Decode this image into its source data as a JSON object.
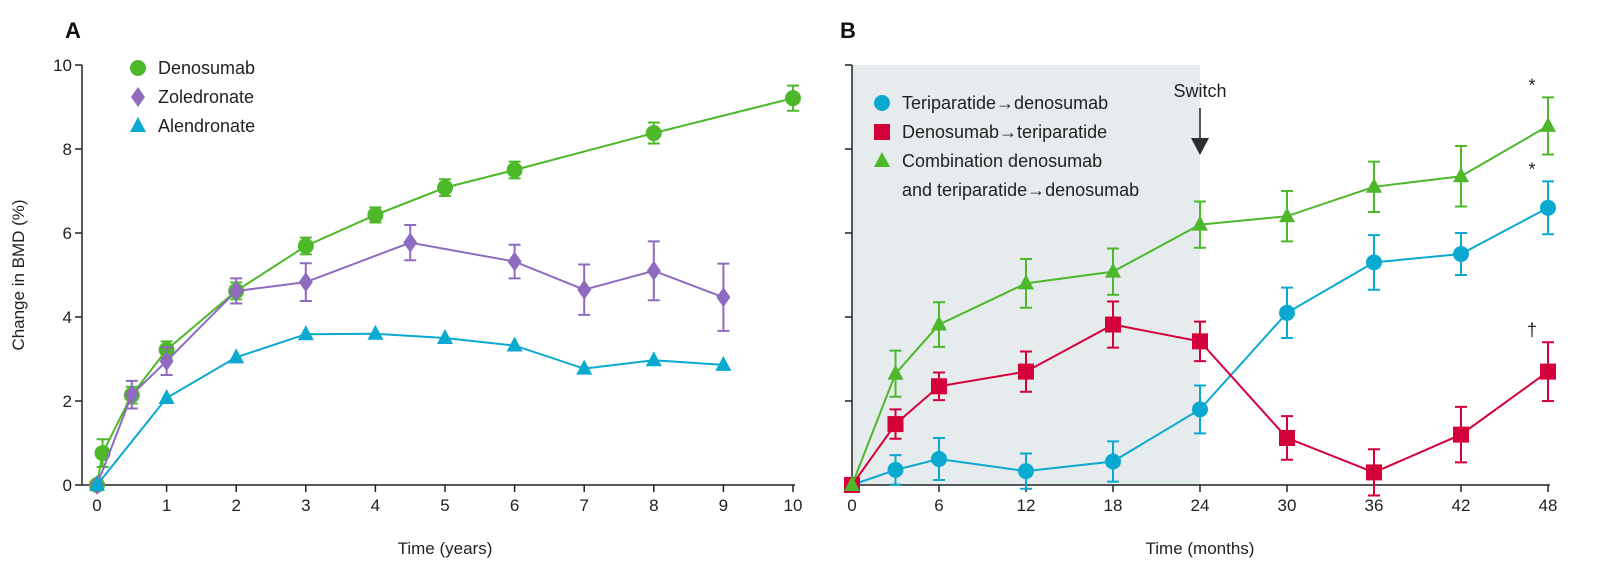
{
  "colors": {
    "denosumab": "#4cb82a",
    "zoledronate": "#8e6bbf",
    "alendronate": "#0aa9cf",
    "deno_teri": "#d4003a",
    "shade": "#e6ebed",
    "axis": "#222222"
  },
  "chart_data": [
    {
      "panel": "A",
      "type": "line",
      "xlabel": "Time (years)",
      "ylabel": "Change in BMD (%)",
      "xlim": [
        0,
        10
      ],
      "ylim": [
        0,
        10
      ],
      "xticks": [
        0,
        1,
        2,
        3,
        4,
        5,
        6,
        7,
        8,
        9,
        10
      ],
      "yticks": [
        0,
        2,
        4,
        6,
        8,
        10
      ],
      "legend_position": "top-left",
      "series": [
        {
          "name": "Denosumab",
          "marker": "circle",
          "color_key": "denosumab",
          "x": [
            0,
            0.08,
            0.5,
            1,
            2,
            3,
            4,
            5,
            6,
            8,
            10
          ],
          "y": [
            0,
            0.76,
            2.14,
            3.22,
            4.62,
            5.69,
            6.43,
            7.08,
            7.5,
            8.38,
            9.21
          ],
          "err": [
            0,
            0.33,
            0.2,
            0.2,
            0.2,
            0.2,
            0.18,
            0.2,
            0.2,
            0.25,
            0.3
          ]
        },
        {
          "name": "Zoledronate",
          "marker": "diamond",
          "color_key": "zoledronate",
          "x": [
            0,
            0.5,
            1,
            2,
            3,
            4.5,
            6,
            7,
            8,
            9
          ],
          "y": [
            0,
            2.15,
            2.95,
            4.62,
            4.83,
            5.77,
            5.32,
            4.65,
            5.1,
            4.47
          ],
          "err": [
            0,
            0.33,
            0.33,
            0.3,
            0.45,
            0.42,
            0.4,
            0.6,
            0.7,
            0.8
          ]
        },
        {
          "name": "Alendronate",
          "marker": "triangle",
          "color_key": "alendronate",
          "x": [
            0,
            1,
            2,
            3,
            4,
            5,
            6,
            7,
            8,
            9
          ],
          "y": [
            0,
            2.07,
            3.04,
            3.59,
            3.6,
            3.5,
            3.32,
            2.77,
            2.97,
            2.86
          ],
          "err": [
            0,
            0,
            0,
            0,
            0,
            0,
            0,
            0,
            0,
            0
          ]
        }
      ]
    },
    {
      "panel": "B",
      "type": "line",
      "xlabel": "Time (months)",
      "ylabel": "",
      "xlim": [
        0,
        48
      ],
      "ylim": [
        0,
        10
      ],
      "xticks": [
        0,
        6,
        12,
        18,
        24,
        30,
        36,
        42,
        48
      ],
      "yticks": [
        0,
        2,
        4,
        6,
        8,
        10
      ],
      "shaded_region_months": [
        0,
        24
      ],
      "annotation": {
        "label": "Switch",
        "x": 24
      },
      "legend_position": "top-left",
      "series": [
        {
          "name": "Teriparatide→denosumab",
          "marker": "circle",
          "color_key": "alendronate",
          "x": [
            0,
            3,
            6,
            12,
            18,
            24,
            30,
            36,
            42,
            48
          ],
          "y": [
            0,
            0.36,
            0.62,
            0.33,
            0.56,
            1.8,
            4.1,
            5.3,
            5.5,
            6.6
          ],
          "err": [
            0,
            0.35,
            0.5,
            0.42,
            0.48,
            0.57,
            0.6,
            0.65,
            0.5,
            0.63
          ],
          "end_mark": "*"
        },
        {
          "name": "Denosumab→teriparatide",
          "marker": "square",
          "color_key": "deno_teri",
          "x": [
            0,
            3,
            6,
            12,
            18,
            24,
            30,
            36,
            42,
            48
          ],
          "y": [
            0,
            1.45,
            2.35,
            2.7,
            3.82,
            3.42,
            1.12,
            0.3,
            1.2,
            2.7
          ],
          "err": [
            0,
            0.35,
            0.33,
            0.48,
            0.55,
            0.47,
            0.52,
            0.55,
            0.66,
            0.7
          ],
          "end_mark": "†"
        },
        {
          "name": "Combination denosumab and teriparatide→denosumab",
          "legend_lines": [
            "Combination denosumab",
            "and teriparatide→denosumab"
          ],
          "marker": "triangle",
          "color_key": "denosumab",
          "x": [
            0,
            3,
            6,
            12,
            18,
            24,
            30,
            36,
            42,
            48
          ],
          "y": [
            0,
            2.65,
            3.82,
            4.8,
            5.08,
            6.2,
            6.4,
            7.1,
            7.35,
            8.55
          ],
          "err": [
            0,
            0.55,
            0.53,
            0.58,
            0.55,
            0.55,
            0.6,
            0.6,
            0.72,
            0.68
          ],
          "end_mark": "*"
        }
      ]
    }
  ]
}
